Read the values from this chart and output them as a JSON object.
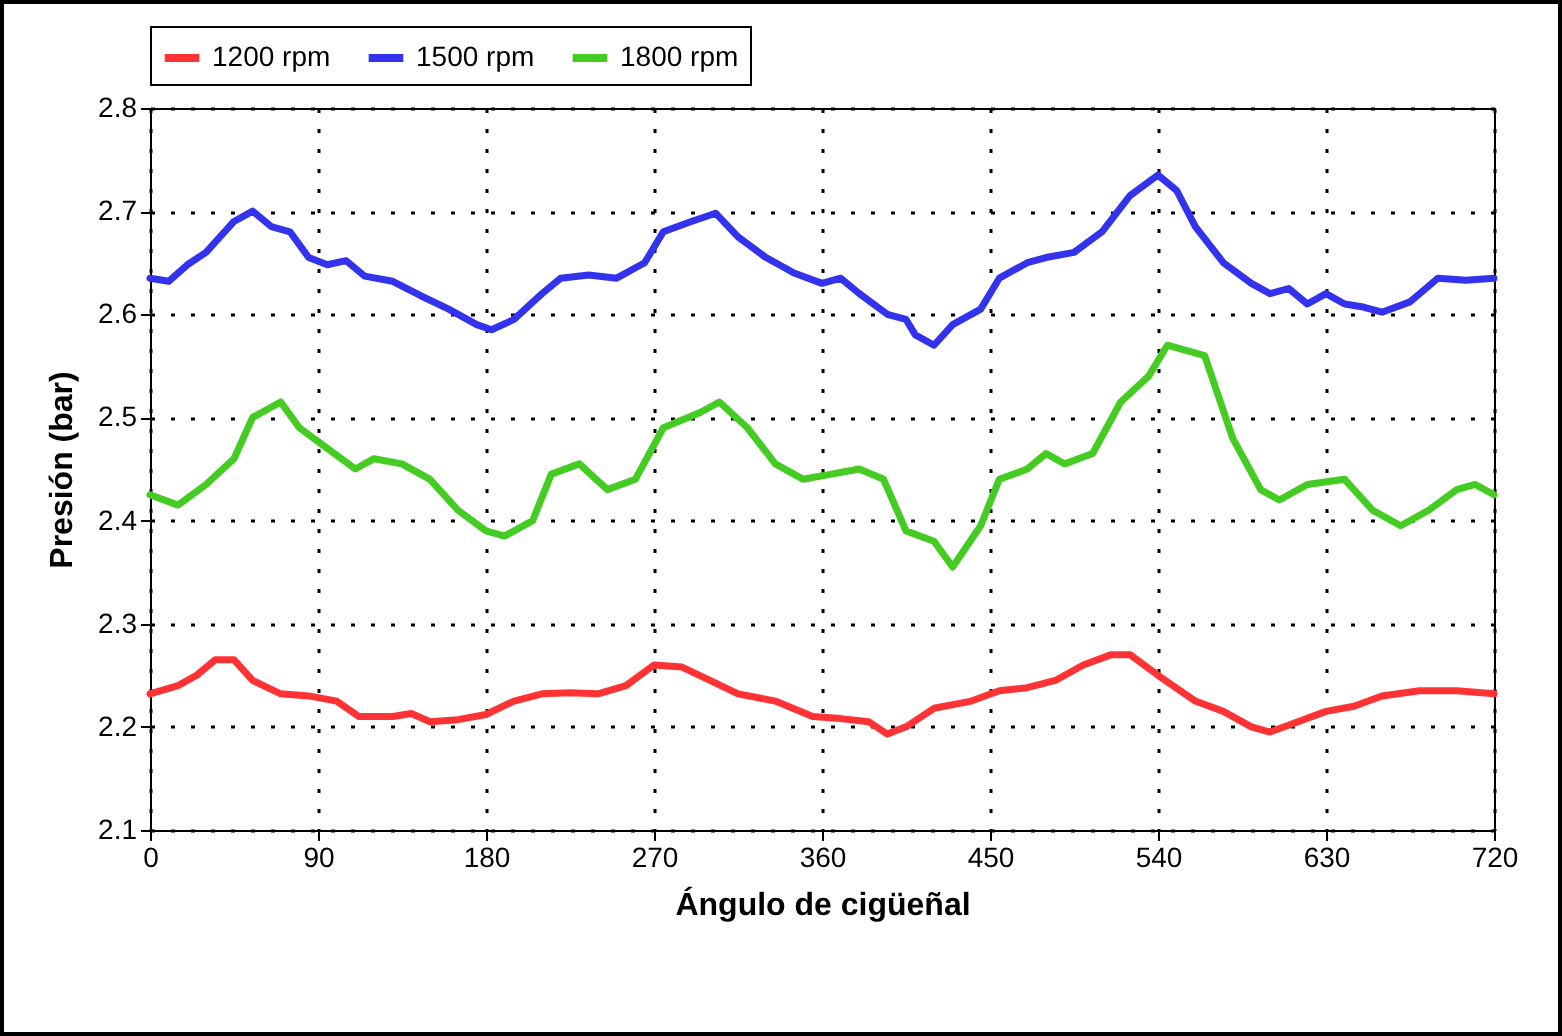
{
  "chart_data": {
    "type": "line",
    "xlabel": "Ángulo de cigüeñal",
    "ylabel": "Presión (bar)",
    "xlim": [
      0,
      720
    ],
    "xticks": [
      0,
      90,
      180,
      270,
      360,
      450,
      540,
      630,
      720
    ],
    "ylim": [
      2.1,
      2.8
    ],
    "yticks": [
      2.1,
      2.2,
      2.3,
      2.4,
      2.5,
      2.6,
      2.7,
      2.8
    ],
    "grid": true,
    "legend": "top",
    "marker": "none",
    "line_style": "solid",
    "series": [
      {
        "name": "1200 rpm",
        "color": "#ff3333",
        "x": [
          0,
          15,
          25,
          35,
          45,
          55,
          70,
          85,
          100,
          112,
          130,
          140,
          150,
          165,
          180,
          195,
          210,
          225,
          240,
          255,
          270,
          285,
          300,
          315,
          335,
          355,
          370,
          385,
          395,
          405,
          420,
          440,
          455,
          470,
          485,
          500,
          515,
          525,
          540,
          560,
          575,
          590,
          600,
          615,
          630,
          645,
          660,
          680,
          700,
          720
        ],
        "values": [
          2.232,
          2.24,
          2.25,
          2.265,
          2.265,
          2.245,
          2.232,
          2.23,
          2.225,
          2.21,
          2.21,
          2.213,
          2.205,
          2.207,
          2.212,
          2.225,
          2.232,
          2.233,
          2.232,
          2.24,
          2.26,
          2.258,
          2.245,
          2.232,
          2.225,
          2.21,
          2.208,
          2.205,
          2.193,
          2.2,
          2.218,
          2.225,
          2.235,
          2.238,
          2.245,
          2.26,
          2.27,
          2.27,
          2.25,
          2.225,
          2.215,
          2.2,
          2.195,
          2.205,
          2.215,
          2.22,
          2.23,
          2.235,
          2.235,
          2.232
        ]
      },
      {
        "name": "1500 rpm",
        "color": "#3333ee",
        "x": [
          0,
          10,
          20,
          30,
          45,
          55,
          65,
          75,
          85,
          95,
          105,
          115,
          130,
          145,
          160,
          175,
          183,
          195,
          210,
          220,
          235,
          250,
          265,
          275,
          290,
          303,
          315,
          330,
          345,
          360,
          370,
          380,
          395,
          405,
          410,
          420,
          430,
          445,
          455,
          470,
          480,
          495,
          510,
          525,
          540,
          550,
          560,
          575,
          590,
          600,
          610,
          620,
          630,
          640,
          650,
          660,
          675,
          690,
          705,
          720
        ],
        "values": [
          2.635,
          2.632,
          2.648,
          2.66,
          2.69,
          2.7,
          2.685,
          2.68,
          2.655,
          2.648,
          2.652,
          2.637,
          2.632,
          2.618,
          2.605,
          2.59,
          2.585,
          2.595,
          2.62,
          2.635,
          2.638,
          2.635,
          2.65,
          2.68,
          2.69,
          2.698,
          2.675,
          2.655,
          2.64,
          2.63,
          2.635,
          2.62,
          2.6,
          2.595,
          2.58,
          2.57,
          2.59,
          2.605,
          2.635,
          2.65,
          2.655,
          2.66,
          2.68,
          2.715,
          2.735,
          2.72,
          2.685,
          2.65,
          2.63,
          2.62,
          2.625,
          2.61,
          2.62,
          2.61,
          2.607,
          2.602,
          2.612,
          2.635,
          2.633,
          2.635
        ]
      },
      {
        "name": "1800 rpm",
        "color": "#44cc22",
        "x": [
          0,
          15,
          30,
          45,
          55,
          70,
          80,
          95,
          110,
          120,
          135,
          150,
          165,
          180,
          190,
          205,
          215,
          230,
          245,
          260,
          275,
          295,
          305,
          320,
          335,
          350,
          365,
          380,
          393,
          405,
          420,
          430,
          445,
          455,
          470,
          480,
          490,
          505,
          520,
          535,
          545,
          555,
          565,
          580,
          595,
          605,
          620,
          640,
          655,
          670,
          685,
          700,
          710,
          720
        ],
        "values": [
          2.425,
          2.415,
          2.435,
          2.46,
          2.5,
          2.515,
          2.49,
          2.47,
          2.45,
          2.46,
          2.455,
          2.44,
          2.41,
          2.39,
          2.385,
          2.4,
          2.445,
          2.455,
          2.43,
          2.44,
          2.49,
          2.505,
          2.515,
          2.49,
          2.455,
          2.44,
          2.445,
          2.45,
          2.44,
          2.39,
          2.38,
          2.355,
          2.395,
          2.44,
          2.45,
          2.465,
          2.455,
          2.465,
          2.515,
          2.54,
          2.57,
          2.565,
          2.56,
          2.48,
          2.43,
          2.42,
          2.435,
          2.44,
          2.41,
          2.395,
          2.41,
          2.43,
          2.435,
          2.425
        ]
      }
    ]
  }
}
